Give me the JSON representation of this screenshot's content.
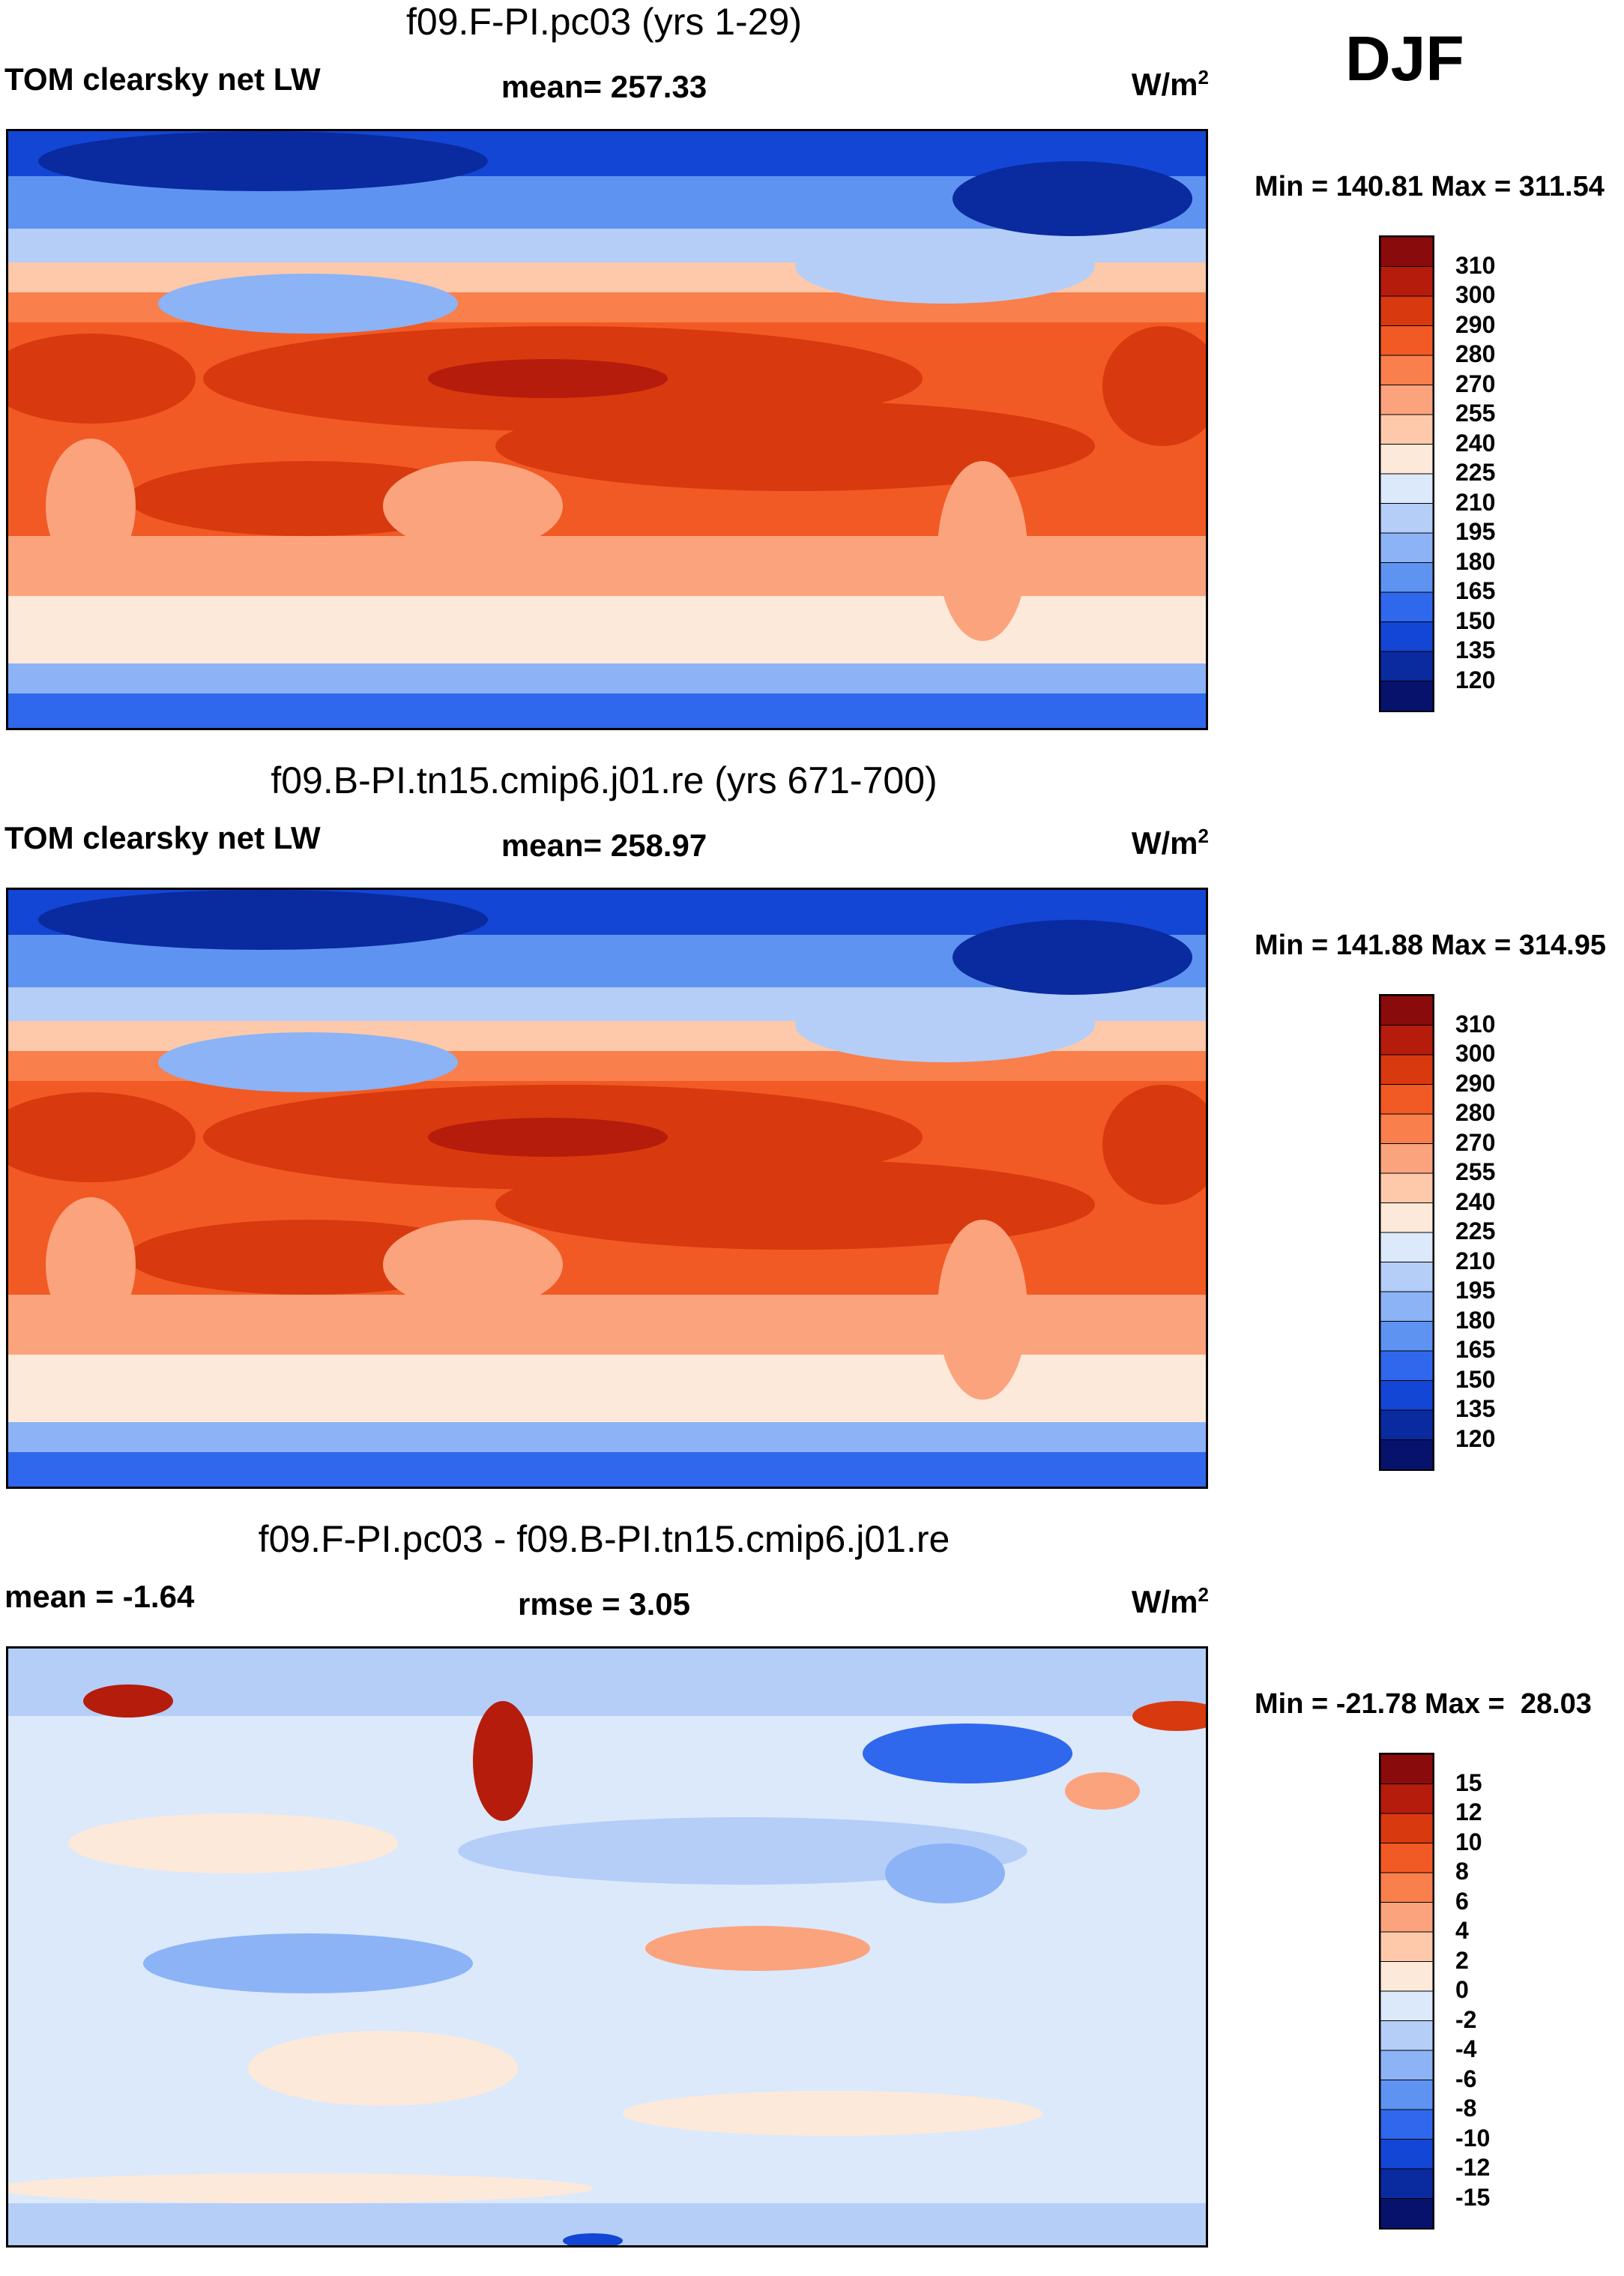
{
  "season": "DJF",
  "chart_data": [
    {
      "type": "heatmap",
      "title": "f09.F-PI.pc03 (yrs 1-29)",
      "variable": "TOM clearsky net LW",
      "stat_text": "mean= 257.33",
      "units": "W/m",
      "units_sup": "2",
      "minmax": "Min = 140.81 Max = 311.54",
      "mean": 257.33,
      "min": 140.81,
      "max": 311.54,
      "colorbar": {
        "levels": [
          "310",
          "300",
          "290",
          "280",
          "270",
          "255",
          "240",
          "225",
          "210",
          "195",
          "180",
          "165",
          "150",
          "135",
          "120"
        ],
        "colors": [
          "#8a0b0b",
          "#b51c0c",
          "#d8390e",
          "#f15a24",
          "#f97f4c",
          "#fba37d",
          "#fdc9aa",
          "#fde9da",
          "#dbe9fb",
          "#b4cef8",
          "#8bb3f6",
          "#5e93f2",
          "#2f68ec",
          "#1346d4",
          "#0a2aa0",
          "#06126b"
        ]
      },
      "fields": {
        "polar": 4,
        "midlat": 6,
        "subtrop": 9,
        "tropics": 11,
        "core": 14
      }
    },
    {
      "type": "heatmap",
      "title": "f09.B-PI.tn15.cmip6.j01.re (yrs 671-700)",
      "variable": "TOM clearsky net LW",
      "stat_text": "mean= 258.97",
      "units": "W/m",
      "units_sup": "2",
      "minmax": "Min = 141.88 Max = 314.95",
      "mean": 258.97,
      "min": 141.88,
      "max": 314.95,
      "colorbar": {
        "levels": [
          "310",
          "300",
          "290",
          "280",
          "270",
          "255",
          "240",
          "225",
          "210",
          "195",
          "180",
          "165",
          "150",
          "135",
          "120"
        ],
        "colors": [
          "#8a0b0b",
          "#b51c0c",
          "#d8390e",
          "#f15a24",
          "#f97f4c",
          "#fba37d",
          "#fdc9aa",
          "#fde9da",
          "#dbe9fb",
          "#b4cef8",
          "#8bb3f6",
          "#5e93f2",
          "#2f68ec",
          "#1346d4",
          "#0a2aa0",
          "#06126b"
        ]
      },
      "fields": {
        "polar": 4,
        "midlat": 6,
        "subtrop": 9,
        "tropics": 11,
        "core": 14
      }
    },
    {
      "type": "heatmap",
      "title": "f09.F-PI.pc03 - f09.B-PI.tn15.cmip6.j01.re",
      "variable": "mean =  -1.64",
      "stat_text": "rmse =   3.05",
      "units": "W/m",
      "units_sup": "2",
      "minmax": "Min = -21.78 Max =  28.03",
      "mean": -1.64,
      "rmse": 3.05,
      "min": -21.78,
      "max": 28.03,
      "colorbar": {
        "levels": [
          "15",
          "12",
          "10",
          "8",
          "6",
          "4",
          "2",
          "0",
          "-2",
          "-4",
          "-6",
          "-8",
          "-10",
          "-12",
          "-15"
        ],
        "colors": [
          "#8a0b0b",
          "#b51c0c",
          "#d8390e",
          "#f15a24",
          "#f97f4c",
          "#fba37d",
          "#fdc9aa",
          "#fde9da",
          "#dbe9fb",
          "#b4cef8",
          "#8bb3f6",
          "#5e93f2",
          "#2f68ec",
          "#1346d4",
          "#0a2aa0",
          "#06126b"
        ]
      }
    }
  ]
}
